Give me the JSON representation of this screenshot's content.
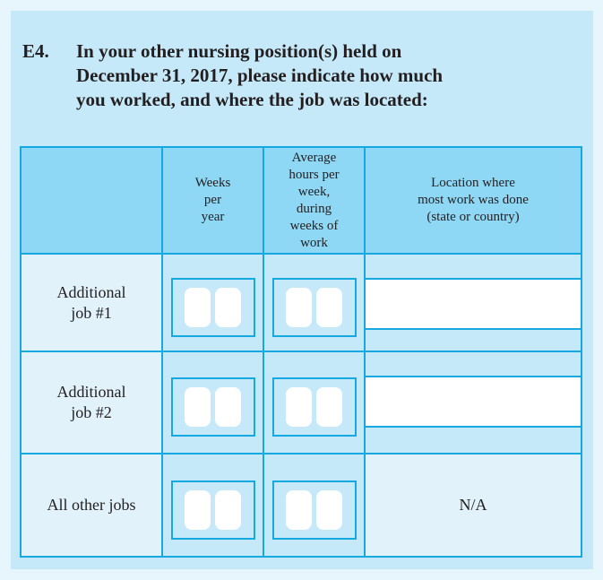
{
  "question": {
    "number": "E4.",
    "lines": [
      "In your other nursing position(s) held on",
      "December 31, 2017, please indicate how much",
      "you worked, and where the job was located:"
    ]
  },
  "table": {
    "headers": {
      "row_label": "",
      "weeks_lines": [
        "Weeks",
        "per",
        "year"
      ],
      "hours_lines": [
        "Average",
        "hours per",
        "week,",
        "during",
        "weeks of",
        "work"
      ],
      "location_lines": [
        "Location where",
        "most work was done",
        "(state or country)"
      ]
    },
    "rows": [
      {
        "label_lines": [
          "Additional",
          "job #1"
        ],
        "weeks_value": "",
        "hours_value": "",
        "location_value": ""
      },
      {
        "label_lines": [
          "Additional",
          "job #2"
        ],
        "weeks_value": "",
        "hours_value": "",
        "location_value": ""
      },
      {
        "label_lines": [
          "All other jobs"
        ],
        "weeks_value": "",
        "hours_value": "",
        "location_value": "N/A"
      }
    ]
  },
  "colors": {
    "page_bg": "#e7f5fd",
    "panel_bg": "#c6e9f9",
    "header_bg": "#8ed8f5",
    "light_cell_bg": "#e1f2fb",
    "border": "#16a9e1",
    "text": "#231f20"
  }
}
